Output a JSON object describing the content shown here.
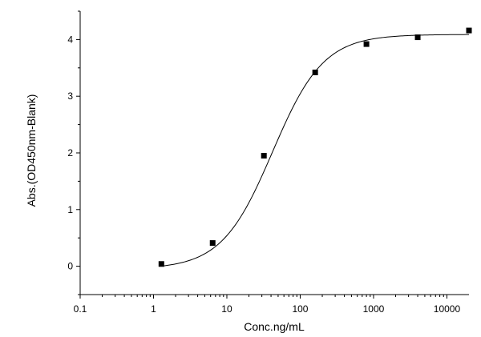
{
  "chart_data": {
    "type": "scatter",
    "xscale": "log",
    "xlabel": "Conc.ng/mL",
    "ylabel": "Abs.(OD450nm-Blank)",
    "xlim": [
      0.1,
      20000
    ],
    "ylim": [
      -0.5,
      4.5
    ],
    "x_ticks": [
      0.1,
      1,
      10,
      100,
      1000,
      10000
    ],
    "x_tick_labels": [
      "0.1",
      "1",
      "10",
      "100",
      "1000",
      "10000"
    ],
    "y_ticks": [
      0,
      1,
      2,
      3,
      4
    ],
    "y_tick_labels": [
      "0",
      "1",
      "2",
      "3",
      "4"
    ],
    "grid": false,
    "series": [
      {
        "points": [
          {
            "x": 1.28,
            "y": 0.04
          },
          {
            "x": 6.4,
            "y": 0.41
          },
          {
            "x": 32,
            "y": 1.95
          },
          {
            "x": 160,
            "y": 3.42
          },
          {
            "x": 800,
            "y": 3.92
          },
          {
            "x": 4000,
            "y": 4.04
          },
          {
            "x": 20000,
            "y": 4.16
          }
        ],
        "marker": "square",
        "color": "#000000"
      }
    ],
    "fit_curve": {
      "model": "4PL",
      "bottom": -0.05,
      "top": 4.09,
      "ec50": 42,
      "hill": 1.25,
      "x_range": [
        1.28,
        20000
      ],
      "color": "#000000"
    }
  }
}
